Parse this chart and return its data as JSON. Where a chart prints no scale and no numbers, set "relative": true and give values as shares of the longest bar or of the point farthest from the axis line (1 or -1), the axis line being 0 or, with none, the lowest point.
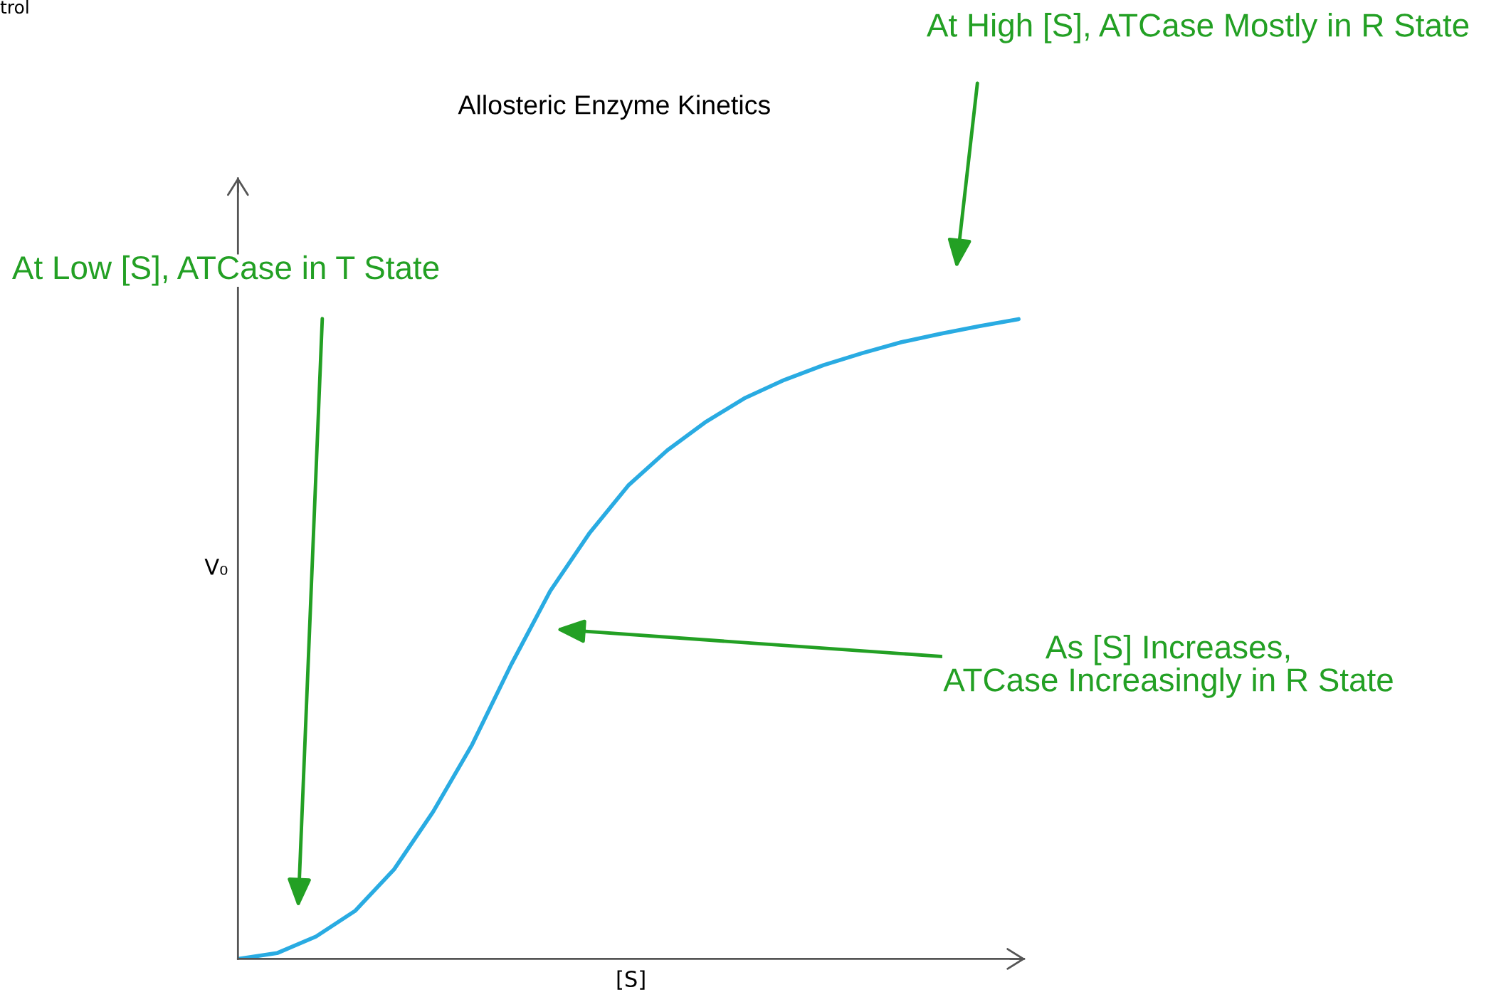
{
  "chart_data": {
    "type": "line",
    "title": "Allosteric Enzyme Kinetics",
    "xlabel": "[S]",
    "ylabel": "V₀",
    "relative": true,
    "categories": [
      null,
      null,
      null,
      null,
      null,
      null,
      null,
      null,
      null,
      null,
      null,
      null,
      null,
      null,
      null,
      null,
      null,
      null,
      null,
      null,
      null
    ],
    "series": [
      {
        "color": "#29abe2",
        "values": [
          0,
          0.009,
          0.035,
          0.075,
          0.14,
          0.23,
          0.335,
          0.46,
          0.575,
          0.665,
          0.74,
          0.795,
          0.84,
          0.877,
          0.905,
          0.928,
          0.947,
          0.964,
          0.977,
          0.989,
          1.0
        ]
      }
    ],
    "marker": "none",
    "line_style": "solid",
    "grid": false,
    "legend": false,
    "annotations": [
      "At Low [S], ATCase in T State",
      "At High [S], ATCase Mostly in R State",
      "As [S] Increases,\nATCase Increasingly in R State",
      "trol"
    ]
  }
}
